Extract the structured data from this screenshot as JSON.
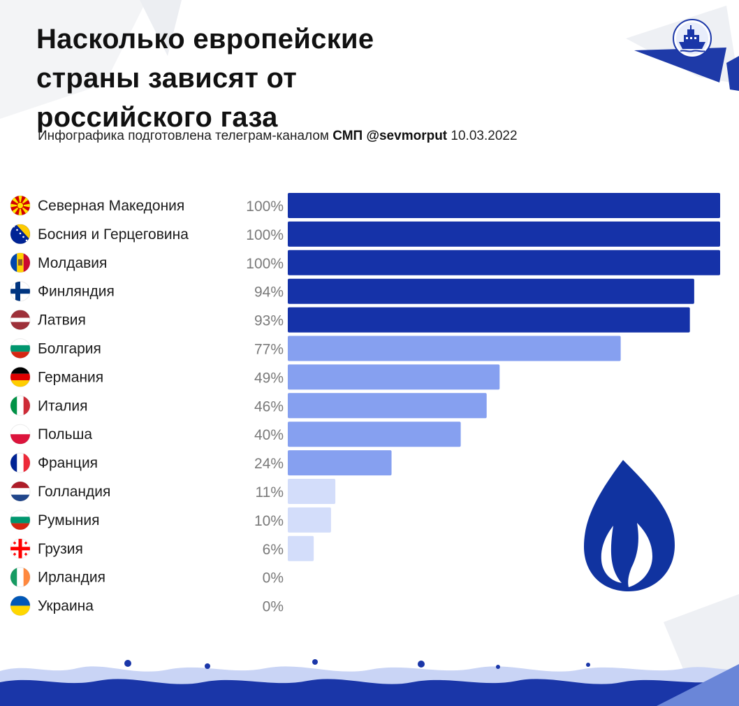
{
  "header": {
    "title": "Насколько европейские\nстраны зависят от\nроссийского газа",
    "subtitle_prefix": "Инфографика подготовлена телеграм-каналом",
    "subtitle_channel": "СМП @sevmorput",
    "subtitle_date": "10.03.2022"
  },
  "colors": {
    "high": "#1532a8",
    "mid": "#86a0f0",
    "low": "#d3ddfa",
    "flame": "#1033a0",
    "wave": "#1a36a8"
  },
  "icons": {
    "logo": "ship-logo-icon",
    "flame": "gas-flame-icon"
  },
  "chart_data": {
    "type": "bar",
    "orientation": "horizontal",
    "xlim": [
      0,
      100
    ],
    "unit": "%",
    "categories": [
      "Северная Македония",
      "Босния и Герцеговина",
      "Молдавия",
      "Финляндия",
      "Латвия",
      "Болгария",
      "Германия",
      "Италия",
      "Польша",
      "Франция",
      "Голландия",
      "Румыния",
      "Грузия",
      "Ирландия",
      "Украина"
    ],
    "values": [
      100,
      100,
      100,
      94,
      93,
      77,
      49,
      46,
      40,
      24,
      11,
      10,
      6,
      0,
      0
    ],
    "value_labels": [
      "100%",
      "100%",
      "100%",
      "94%",
      "93%",
      "77%",
      "49%",
      "46%",
      "40%",
      "24%",
      "11%",
      "10%",
      "6%",
      "0%",
      "0%"
    ],
    "flags": [
      "flag-north-macedonia",
      "flag-bosnia",
      "flag-moldova",
      "flag-finland",
      "flag-latvia",
      "flag-bulgaria",
      "flag-germany",
      "flag-italy",
      "flag-poland",
      "flag-france",
      "flag-netherlands",
      "flag-romania",
      "flag-georgia",
      "flag-ireland",
      "flag-ukraine"
    ]
  }
}
